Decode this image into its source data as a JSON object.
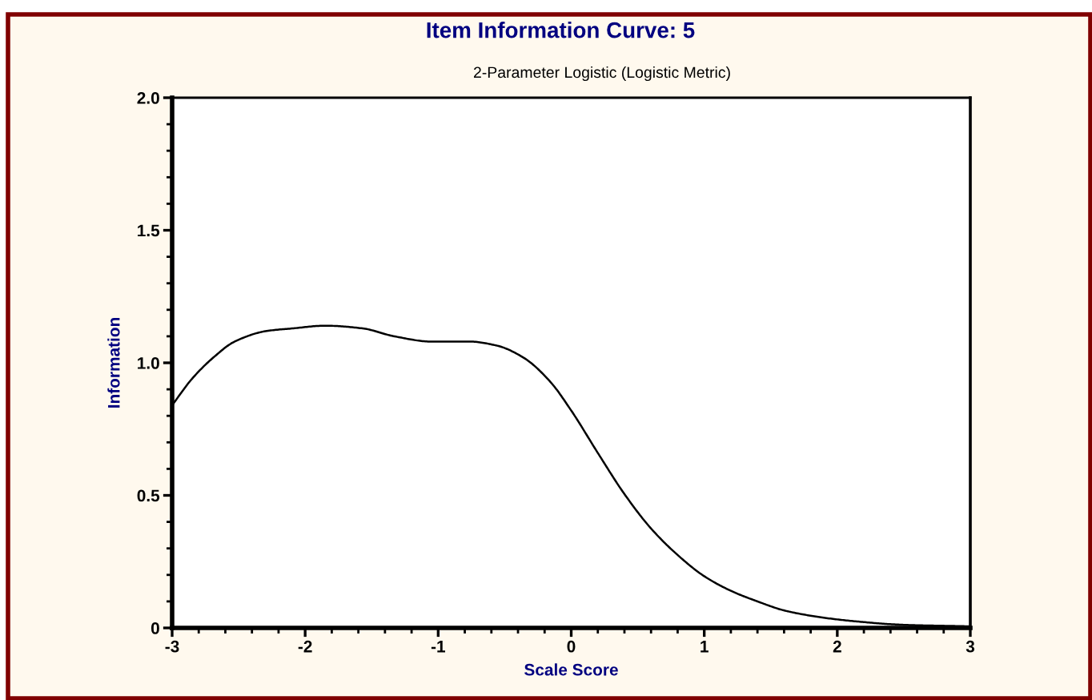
{
  "chart_data": {
    "type": "line",
    "title": "Item Information Curve: 5",
    "subtitle": "2-Parameter Logistic (Logistic Metric)",
    "xlabel": "Scale Score",
    "ylabel": "Information",
    "series": [
      {
        "color": "#000000",
        "line_style": "solid",
        "x": [
          -3.0,
          -2.85,
          -2.69,
          -2.53,
          -2.29,
          -2.09,
          -1.85,
          -1.57,
          -1.33,
          -1.05,
          -0.76,
          -0.56,
          -0.36,
          -0.16,
          0.0,
          0.2,
          0.4,
          0.6,
          0.8,
          1.0,
          1.2,
          1.4,
          1.6,
          1.8,
          2.0,
          2.2,
          2.4,
          2.6,
          2.8,
          3.0
        ],
        "values": [
          0.84,
          0.94,
          1.02,
          1.08,
          1.12,
          1.13,
          1.14,
          1.13,
          1.1,
          1.08,
          1.08,
          1.065,
          1.02,
          0.93,
          0.82,
          0.66,
          0.505,
          0.375,
          0.275,
          0.195,
          0.14,
          0.1,
          0.066,
          0.046,
          0.032,
          0.022,
          0.014,
          0.01,
          0.008,
          0.006
        ]
      }
    ],
    "xlim": [
      -3,
      3
    ],
    "ylim": [
      0,
      2
    ],
    "xticks": [
      -3,
      {
        "value": -2.8,
        "label": null
      },
      {
        "value": -2.6,
        "label": null
      },
      {
        "value": -2.4,
        "label": null
      },
      {
        "value": -2.2,
        "label": null
      },
      -2,
      {
        "value": -1.8,
        "label": null
      },
      {
        "value": -1.6,
        "label": null
      },
      {
        "value": -1.4,
        "label": null
      },
      {
        "value": -1.2,
        "label": null
      },
      -1,
      {
        "value": -0.8,
        "label": null
      },
      {
        "value": -0.6,
        "label": null
      },
      {
        "value": -0.4,
        "label": null
      },
      {
        "value": -0.2,
        "label": null
      },
      0,
      {
        "value": 0.2,
        "label": null
      },
      {
        "value": 0.4,
        "label": null
      },
      {
        "value": 0.6,
        "label": null
      },
      {
        "value": 0.8,
        "label": null
      },
      1,
      {
        "value": 1.2,
        "label": null
      },
      {
        "value": 1.4,
        "label": null
      },
      {
        "value": 1.6,
        "label": null
      },
      {
        "value": 1.8,
        "label": null
      },
      2,
      {
        "value": 2.2,
        "label": null
      },
      {
        "value": 2.4,
        "label": null
      },
      {
        "value": 2.6,
        "label": null
      },
      {
        "value": 2.8,
        "label": null
      },
      3
    ],
    "yticks": [
      0,
      {
        "value": 0.1,
        "label": null
      },
      {
        "value": 0.2,
        "label": null
      },
      {
        "value": 0.3,
        "label": null
      },
      {
        "value": 0.4,
        "label": null
      },
      0.5,
      {
        "value": 0.6,
        "label": null
      },
      {
        "value": 0.7,
        "label": null
      },
      {
        "value": 0.8,
        "label": null
      },
      {
        "value": 0.9,
        "label": null
      },
      {
        "value": 1.0,
        "label": "1.0"
      },
      {
        "value": 1.1,
        "label": null
      },
      {
        "value": 1.2,
        "label": null
      },
      {
        "value": 1.3,
        "label": null
      },
      {
        "value": 1.4,
        "label": null
      },
      1.5,
      {
        "value": 1.6,
        "label": null
      },
      {
        "value": 1.7,
        "label": null
      },
      {
        "value": 1.8,
        "label": null
      },
      {
        "value": 1.9,
        "label": null
      },
      {
        "value": 2.0,
        "label": "2.0"
      }
    ]
  }
}
